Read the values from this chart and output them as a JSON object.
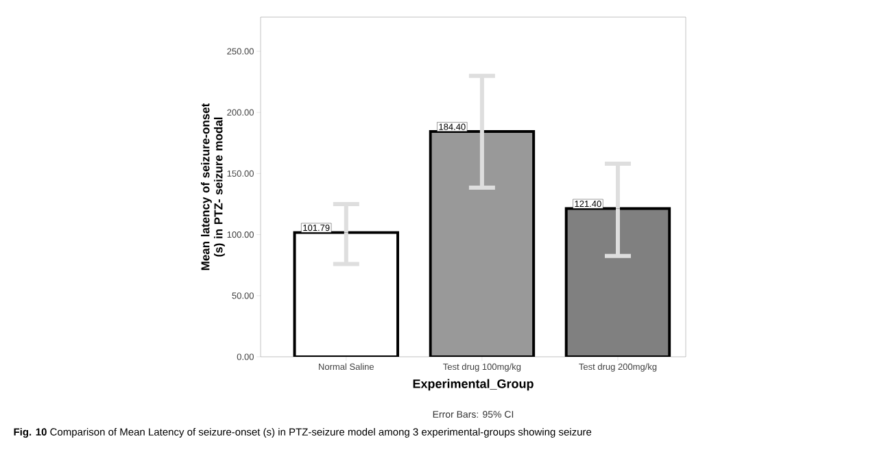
{
  "chart_data": {
    "type": "bar",
    "categories": [
      "Normal Saline",
      "Test drug 100mg/kg",
      "Test drug 200mg/kg"
    ],
    "values": [
      101.79,
      184.4,
      121.4
    ],
    "colors": [
      "#ffffff",
      "#999999",
      "#808080"
    ],
    "errors": [
      [
        76,
        125
      ],
      [
        138.5,
        230
      ],
      [
        82.5,
        158
      ]
    ],
    "value_labels": [
      "101.79",
      "184.40",
      "121.40"
    ],
    "xlabel": "Experimental_Group",
    "ylabel": "Mean latency of seizure-onset (s) in PTZ- seizure modal",
    "ylim": [
      0,
      278
    ],
    "yticks": [
      {
        "value": 0,
        "label": "0.00"
      },
      {
        "value": 50,
        "label": "50.00"
      },
      {
        "value": 100,
        "label": "100.00"
      },
      {
        "value": 150,
        "label": "150.00"
      },
      {
        "value": 200,
        "label": "200.00"
      },
      {
        "value": 250,
        "label": "250.00"
      }
    ],
    "grid": false,
    "annotations": [
      "Error Bars: 95% CI",
      "**Fig. 10** Comparison of Mean Latency of seizure-onset (s) in PTZ-seizure model among 3 experimental-groups showing seizure"
    ]
  }
}
